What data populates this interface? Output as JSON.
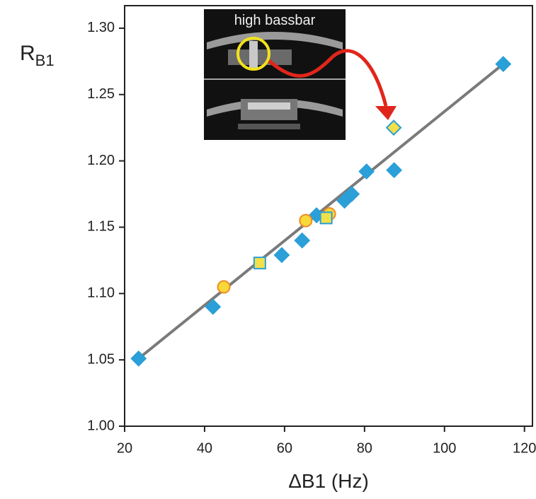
{
  "chart_data": {
    "type": "scatter",
    "xlabel": "ΔB1 (Hz)",
    "ylabel": {
      "main": "R",
      "sub": "B1"
    },
    "annotation": "high bassbar",
    "xlim": [
      20,
      122
    ],
    "xticks": [
      20,
      40,
      60,
      80,
      100,
      120
    ],
    "ylim": [
      1.0,
      1.317
    ],
    "yticks": [
      {
        "value": 1.0,
        "label": "1.00"
      },
      {
        "value": 1.05,
        "label": "1.05"
      },
      {
        "value": 1.1,
        "label": "1.10"
      },
      {
        "value": 1.15,
        "label": "1.15"
      },
      {
        "value": 1.2,
        "label": "1.20"
      },
      {
        "value": 1.25,
        "label": "1.25"
      },
      {
        "value": 1.3,
        "label": "1.30"
      }
    ],
    "series": [
      {
        "kind": "line",
        "color": "#7a7a7a",
        "x": [
          23.5,
          114.7
        ],
        "y": [
          1.051,
          1.273
        ]
      },
      {
        "kind": "points",
        "marker": "diamond",
        "color": "#2a9fd8",
        "stroke": "#2a9fd8",
        "x": [
          23.5,
          42.1,
          59.3,
          64.4,
          68.0,
          75.0,
          76.8,
          80.5,
          87.4,
          114.7
        ],
        "y": [
          1.051,
          1.09,
          1.129,
          1.14,
          1.159,
          1.17,
          1.175,
          1.192,
          1.193,
          1.273
        ]
      },
      {
        "kind": "points",
        "marker": "circle",
        "color": "#f7d93a",
        "stroke": "#f08a24",
        "x": [
          44.8,
          65.3,
          71.2
        ],
        "y": [
          1.105,
          1.155,
          1.16
        ]
      },
      {
        "kind": "points",
        "marker": "square",
        "color": "#f2e04a",
        "stroke": "#2a9fd8",
        "x": [
          53.8,
          70.4
        ],
        "y": [
          1.123,
          1.157
        ]
      },
      {
        "kind": "points",
        "marker": "diamond",
        "color": "#f2e04a",
        "stroke": "#2a9fd8",
        "x": [
          87.3
        ],
        "y": [
          1.225
        ]
      }
    ]
  }
}
